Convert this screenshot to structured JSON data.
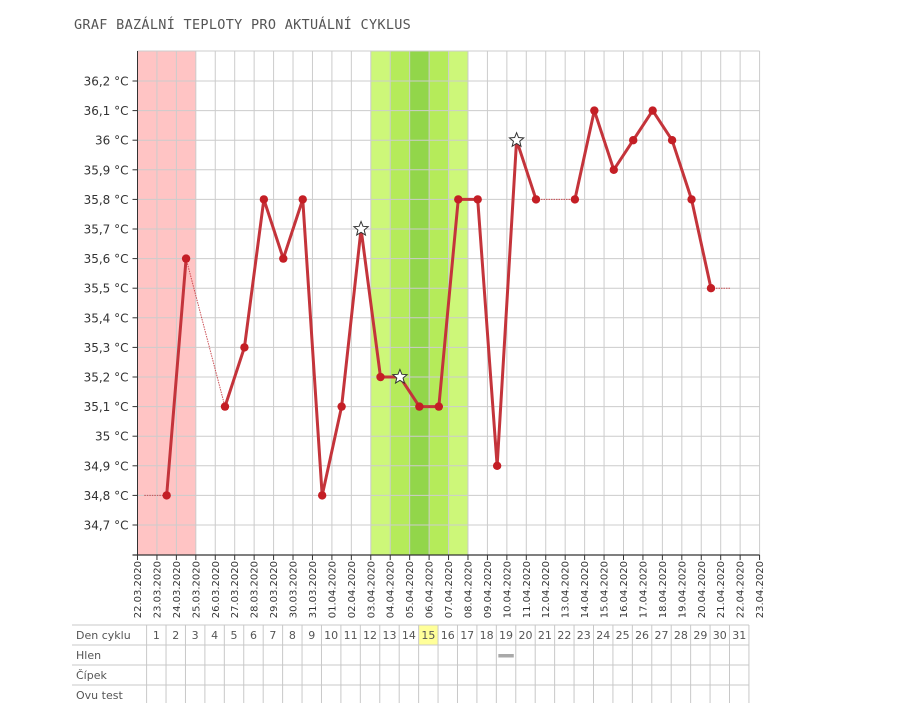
{
  "title": "GRAF BAZÁLNÍ TEPLOTY PRO AKTUÁLNÍ CYKLUS",
  "chart_data": {
    "type": "line",
    "dates": [
      "22.03.2020",
      "23.03.2020",
      "24.03.2020",
      "25.03.2020",
      "26.03.2020",
      "27.03.2020",
      "28.03.2020",
      "29.03.2020",
      "30.03.2020",
      "31.03.2020",
      "01.04.2020",
      "02.04.2020",
      "03.04.2020",
      "04.04.2020",
      "05.04.2020",
      "06.04.2020",
      "07.04.2020",
      "08.04.2020",
      "09.04.2020",
      "10.04.2020",
      "11.04.2020",
      "12.04.2020",
      "13.04.2020",
      "14.04.2020",
      "15.04.2020",
      "16.04.2020",
      "17.04.2020",
      "18.04.2020",
      "19.04.2020",
      "20.04.2020",
      "21.04.2020",
      "22.04.2020",
      "23.04.2020"
    ],
    "y_ticks": [
      {
        "value": 34.7,
        "label": "34,7 °C"
      },
      {
        "value": 34.8,
        "label": "34,8 °C"
      },
      {
        "value": 34.9,
        "label": "34,9 °C"
      },
      {
        "value": 35.0,
        "label": "35 °C"
      },
      {
        "value": 35.1,
        "label": "35,1 °C"
      },
      {
        "value": 35.2,
        "label": "35,2 °C"
      },
      {
        "value": 35.3,
        "label": "35,3 °C"
      },
      {
        "value": 35.4,
        "label": "35,4 °C"
      },
      {
        "value": 35.5,
        "label": "35,5 °C"
      },
      {
        "value": 35.6,
        "label": "35,6 °C"
      },
      {
        "value": 35.7,
        "label": "35,7 °C"
      },
      {
        "value": 35.8,
        "label": "35,8 °C"
      },
      {
        "value": 35.9,
        "label": "35,9 °C"
      },
      {
        "value": 36.0,
        "label": "36 °C"
      },
      {
        "value": 36.1,
        "label": "36,1 °C"
      },
      {
        "value": 36.2,
        "label": "36,2 °C"
      }
    ],
    "ylim": [
      34.6,
      36.3
    ],
    "grid": true,
    "series": [
      {
        "points": [
          {
            "day": 2,
            "value": 34.8
          },
          {
            "day": 3,
            "value": 35.6
          },
          {
            "day": 5,
            "value": 35.1
          },
          {
            "day": 6,
            "value": 35.3
          },
          {
            "day": 7,
            "value": 35.8
          },
          {
            "day": 8,
            "value": 35.6
          },
          {
            "day": 9,
            "value": 35.8
          },
          {
            "day": 10,
            "value": 34.8
          },
          {
            "day": 11,
            "value": 35.1
          },
          {
            "day": 12,
            "value": 35.7,
            "marker": "star"
          },
          {
            "day": 13,
            "value": 35.2
          },
          {
            "day": 14,
            "value": 35.2,
            "marker": "star"
          },
          {
            "day": 15,
            "value": 35.1
          },
          {
            "day": 16,
            "value": 35.1
          },
          {
            "day": 17,
            "value": 35.8
          },
          {
            "day": 18,
            "value": 35.8
          },
          {
            "day": 19,
            "value": 34.9
          },
          {
            "day": 20,
            "value": 36.0,
            "marker": "star"
          },
          {
            "day": 21,
            "value": 35.8
          },
          {
            "day": 23,
            "value": 35.8
          },
          {
            "day": 24,
            "value": 36.1
          },
          {
            "day": 25,
            "value": 35.9
          },
          {
            "day": 26,
            "value": 36.0
          },
          {
            "day": 27,
            "value": 36.1
          },
          {
            "day": 28,
            "value": 36.0
          },
          {
            "day": 29,
            "value": 35.8
          },
          {
            "day": 30,
            "value": 35.5
          }
        ]
      }
    ],
    "thin_segments": [
      {
        "from_day": 1,
        "to_day": 2,
        "value": 34.8
      },
      {
        "from_day": 3,
        "to_day": 5
      },
      {
        "from_day": 21,
        "to_day": 23,
        "value": 35.8
      },
      {
        "from_day": 30,
        "to_day": 31,
        "value": 35.5
      }
    ],
    "bands": [
      {
        "kind": "menstruation",
        "from_day": 1,
        "to_day": 3,
        "color": "#ffc4c4"
      },
      {
        "kind": "fertile",
        "from_day": 13,
        "to_day": 17,
        "color": "#cdf779"
      },
      {
        "kind": "fertile-peak",
        "from_day": 14,
        "to_day": 16,
        "color": "#b5eb5a"
      },
      {
        "kind": "ovulation",
        "from_day": 15,
        "to_day": 15,
        "color": "#92d64a"
      }
    ],
    "colors": {
      "line": "#c4343b",
      "marker": "#c41e25",
      "grid": "#cccccc",
      "highlight": "#ffff99"
    }
  },
  "table": {
    "rows": [
      {
        "label": "Den cyklu"
      },
      {
        "label": "Hlen"
      },
      {
        "label": "Čípek"
      },
      {
        "label": "Ovu test"
      }
    ],
    "days": [
      "1",
      "2",
      "3",
      "4",
      "5",
      "6",
      "7",
      "8",
      "9",
      "10",
      "11",
      "12",
      "13",
      "14",
      "15",
      "16",
      "17",
      "18",
      "19",
      "20",
      "21",
      "22",
      "23",
      "24",
      "25",
      "26",
      "27",
      "28",
      "29",
      "30",
      "31"
    ],
    "highlight_day": 15,
    "hlen_marks": [
      19
    ]
  }
}
